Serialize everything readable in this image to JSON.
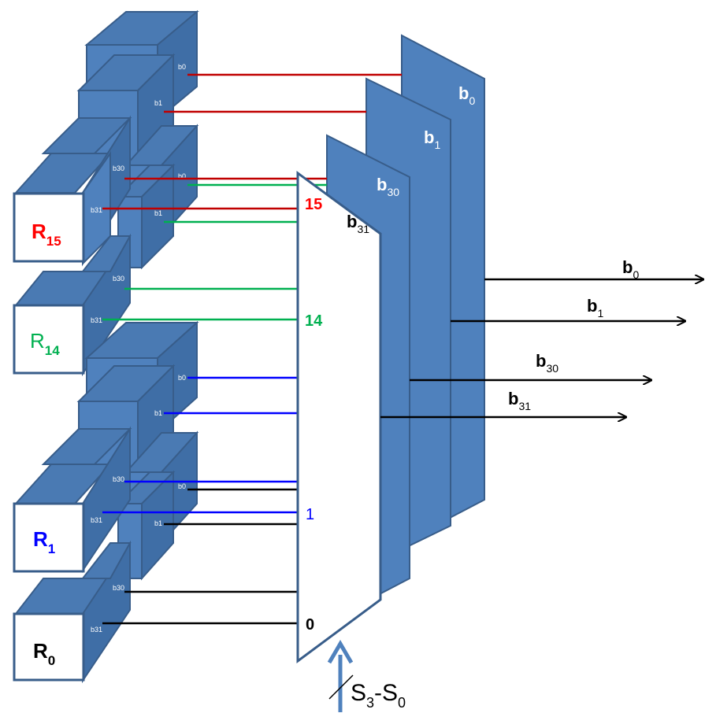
{
  "colors": {
    "block": "#4f81bd",
    "red": "#c00000",
    "green": "#00b050",
    "blue": "#0000ff",
    "black": "#000000",
    "bus_arrow": "#4f81bd"
  },
  "registers": [
    {
      "label": "R",
      "sub": "15",
      "color": "#ff0000"
    },
    {
      "label": "R",
      "sub": "14",
      "color": "#00b050"
    },
    {
      "label": "R",
      "sub": "1",
      "color": "#0000ff"
    },
    {
      "label": "R",
      "sub": "0",
      "color": "#000000"
    }
  ],
  "bit_tags": {
    "b0": "b0",
    "b1": "b1",
    "b30": "b30",
    "b31": "b31"
  },
  "mux_inputs": [
    {
      "label": "15",
      "color": "#ff0000"
    },
    {
      "label": "14",
      "color": "#00b050"
    },
    {
      "label": "1",
      "color": "#0000ff"
    },
    {
      "label": "0",
      "color": "#000000"
    }
  ],
  "planes": [
    {
      "base": "b",
      "sub": "0"
    },
    {
      "base": "b",
      "sub": "1"
    },
    {
      "base": "b",
      "sub": "30"
    },
    {
      "base": "b",
      "sub": "31"
    }
  ],
  "outputs": [
    {
      "base": "b",
      "sub": "0"
    },
    {
      "base": "b",
      "sub": "1"
    },
    {
      "base": "b",
      "sub": "30"
    },
    {
      "base": "b",
      "sub": "31"
    }
  ],
  "select": {
    "s_hi": "3",
    "dash": "-",
    "s_lo": "0",
    "base": "S"
  }
}
